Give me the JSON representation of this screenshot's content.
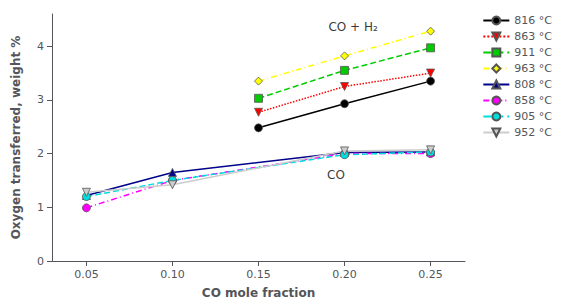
{
  "chart_data": {
    "type": "line",
    "title": "",
    "xlabel": "CO mole fraction",
    "ylabel": "Oxygen transferred, weight %",
    "xlim": [
      0.03,
      0.27
    ],
    "ylim": [
      0,
      4.6
    ],
    "xticks": [
      0.05,
      {
        "value": 0.1,
        "label": "0.10"
      },
      0.15,
      {
        "value": 0.2,
        "label": "0.20"
      },
      0.25
    ],
    "yticks": [
      0,
      1,
      2,
      3,
      4
    ],
    "grid": false,
    "legend": "right",
    "annotations": [
      {
        "text": "CO + H₂",
        "x": 0.205,
        "y": 4.35
      },
      {
        "text": "CO",
        "x": 0.195,
        "y": 1.6
      }
    ],
    "series": [
      {
        "name": "816 °C",
        "color": "#000000",
        "marker": "circle",
        "line_style": "solid",
        "x": [
          0.15,
          0.2,
          0.25
        ],
        "values": [
          2.48,
          2.93,
          3.35
        ]
      },
      {
        "name": "863 °C",
        "color": "#ff0000",
        "marker": "triangle-down",
        "line_style": "dotted",
        "x": [
          0.15,
          0.2,
          0.25
        ],
        "values": [
          2.77,
          3.25,
          3.5
        ]
      },
      {
        "name": "911 °C",
        "color": "#00cc00",
        "marker": "square",
        "line_style": "dashed",
        "x": [
          0.15,
          0.2,
          0.25
        ],
        "values": [
          3.03,
          3.55,
          3.97
        ]
      },
      {
        "name": "963 °C",
        "color": "#ffff00",
        "marker": "diamond",
        "line_style": "dashdot",
        "x": [
          0.15,
          0.2,
          0.25
        ],
        "values": [
          3.35,
          3.82,
          4.28
        ]
      },
      {
        "name": "808 °C",
        "color": "#00008b",
        "marker": "triangle",
        "line_style": "solid",
        "x": [
          0.05,
          0.1,
          0.2,
          0.25
        ],
        "values": [
          1.22,
          1.65,
          2.02,
          2.03
        ]
      },
      {
        "name": "858 °C",
        "color": "#ff00ff",
        "marker": "circle",
        "line_style": "dashdot",
        "x": [
          0.05,
          0.1,
          0.2,
          0.25
        ],
        "values": [
          0.99,
          1.5,
          2.0,
          2.0
        ]
      },
      {
        "name": "905 °C",
        "color": "#00dddd",
        "marker": "circle",
        "line_style": "dashed",
        "x": [
          0.05,
          0.1,
          0.2,
          0.25
        ],
        "values": [
          1.2,
          1.5,
          1.98,
          2.03
        ]
      },
      {
        "name": "952 °C",
        "color": "#cccccc",
        "marker": "triangle-down",
        "line_style": "solid",
        "x": [
          0.05,
          0.1,
          0.2,
          0.25
        ],
        "values": [
          1.28,
          1.42,
          2.05,
          2.07
        ]
      }
    ]
  }
}
